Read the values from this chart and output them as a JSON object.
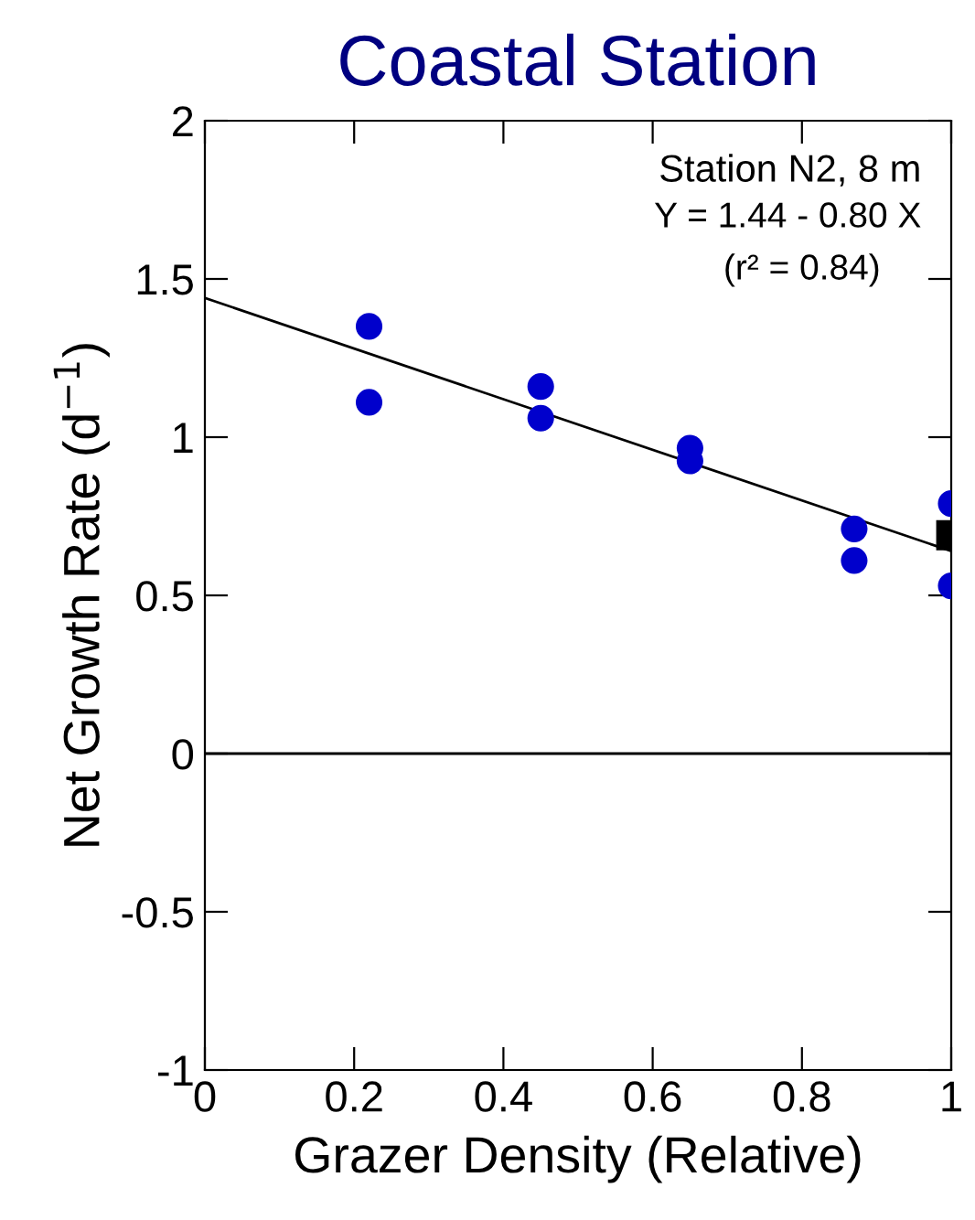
{
  "chart_data": {
    "type": "scatter",
    "title": "Coastal Station",
    "xlabel": "Grazer Density (Relative)",
    "ylabel": "Net Growth Rate (d$^{−1}$)",
    "annotations": [
      "Station N2, 8 m",
      "Y = 1.44 - 0.80 X",
      "(r² = 0.84)"
    ],
    "series": [
      {
        "color": "#0000cc",
        "marker": "circle",
        "x": [
          0.22,
          0.22,
          0.45,
          0.45,
          0.65,
          0.65,
          0.87,
          0.87,
          1.0,
          1.0
        ],
        "values": [
          1.35,
          1.11,
          1.16,
          1.06,
          0.965,
          0.925,
          0.71,
          0.61,
          0.79,
          0.53
        ]
      },
      {
        "color": "#000000",
        "marker": "square",
        "x": [
          1.0
        ],
        "values": [
          0.69
        ]
      },
      {
        "type": "line",
        "color": "#000000",
        "marker": "none",
        "x": [
          0,
          1
        ],
        "values": [
          1.44,
          0.64
        ]
      }
    ],
    "ref_lines": [
      {
        "axis": "y",
        "value": 0,
        "color": "#000000"
      }
    ],
    "xlim": [
      0,
      1
    ],
    "ylim": [
      -1,
      2
    ],
    "xticks": [
      0,
      0.2,
      0.4,
      0.6,
      0.8,
      1
    ],
    "yticks": [
      -1,
      -0.5,
      0,
      0.5,
      1,
      1.5,
      2
    ],
    "grid": false,
    "legend": false
  }
}
